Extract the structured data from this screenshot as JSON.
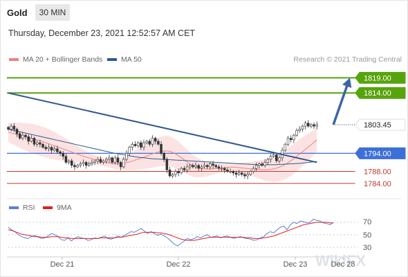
{
  "header": {
    "instrument": "Gold",
    "timeframe": "30 MIN",
    "datetime": "Thursday, December 23, 2021 12:52:57 AM CET"
  },
  "legend": {
    "ma20": {
      "label": "MA 20 + Bollinger Bands",
      "color": "#f08080"
    },
    "ma50": {
      "label": "MA 50",
      "color": "#2d5b8c"
    },
    "copyright": "Research © 2021 Trading Central"
  },
  "rsi_legend": {
    "rsi": {
      "label": "RSI",
      "color": "#5b7fd6"
    },
    "ma9": {
      "label": "9MA",
      "color": "#e0201b"
    }
  },
  "watermark": "WikiFX",
  "chart_data": [
    {
      "type": "candlestick",
      "title": "Gold",
      "timeframe": "30 MIN",
      "x_ticks": [
        "Dec 21",
        "Dec 22",
        "Dec 23",
        "Dec 28"
      ],
      "ylim": [
        1781,
        1823
      ],
      "price_levels": [
        {
          "label": "1819.00",
          "value": 1819.0,
          "color": "#57a30c",
          "role": "target"
        },
        {
          "label": "1814.00",
          "value": 1814.0,
          "color": "#57a30c",
          "role": "target"
        },
        {
          "label": "1803.45",
          "value": 1803.45,
          "color": "#222222",
          "role": "last-price"
        },
        {
          "label": "1794.00",
          "value": 1794.0,
          "color": "#3d6fd9",
          "role": "pivot"
        },
        {
          "label": "1788.00",
          "value": 1788.0,
          "color": "#c0392b",
          "role": "support"
        },
        {
          "label": "1784.00",
          "value": 1784.0,
          "color": "#c0392b",
          "role": "support"
        }
      ],
      "trendline": {
        "from": {
          "t": 0,
          "price": 1814.0
        },
        "to": {
          "t": 112,
          "price": 1791.0
        }
      },
      "forecast_arrow": {
        "from": {
          "t": 118,
          "price": 1803.5
        },
        "to": {
          "t": 124,
          "price": 1819.0
        }
      },
      "close_series": [
        1802.0,
        1803.0,
        1802.0,
        1800.5,
        1799.0,
        1800.0,
        1799.5,
        1798.0,
        1799.0,
        1797.0,
        1797.5,
        1797.0,
        1796.0,
        1795.5,
        1796.0,
        1795.0,
        1795.5,
        1794.5,
        1794.0,
        1793.0,
        1791.0,
        1791.5,
        1790.0,
        1789.5,
        1790.0,
        1790.5,
        1791.0,
        1790.0,
        1790.5,
        1791.0,
        1791.5,
        1792.0,
        1791.0,
        1791.5,
        1792.0,
        1792.5,
        1791.0,
        1792.5,
        1791.0,
        1789.5,
        1792.0,
        1794.0,
        1796.0,
        1797.0,
        1796.5,
        1797.5,
        1796.0,
        1797.5,
        1798.0,
        1797.0,
        1799.0,
        1798.0,
        1797.0,
        1794.0,
        1792.0,
        1788.5,
        1786.5,
        1787.0,
        1788.0,
        1787.5,
        1789.0,
        1788.5,
        1789.5,
        1790.0,
        1789.5,
        1790.0,
        1789.0,
        1789.5,
        1790.0,
        1789.5,
        1790.5,
        1790.0,
        1789.5,
        1789.0,
        1789.0,
        1788.5,
        1788.0,
        1788.0,
        1787.5,
        1787.0,
        1787.5,
        1787.0,
        1786.5,
        1787.0,
        1788.0,
        1789.0,
        1790.0,
        1790.5,
        1790.0,
        1791.0,
        1792.0,
        1793.0,
        1793.5,
        1791.5,
        1792.5,
        1795.0,
        1797.0,
        1799.0,
        1798.5,
        1800.0,
        1801.5,
        1802.0,
        1803.0,
        1804.0,
        1803.0,
        1803.5,
        1803.0,
        1803.5
      ],
      "ma20_series": [
        1801.0,
        1800.7,
        1800.4,
        1800.1,
        1799.8,
        1799.5,
        1799.2,
        1798.9,
        1798.6,
        1798.3,
        1798.0,
        1797.6,
        1797.2,
        1796.8,
        1796.4,
        1796.0,
        1795.6,
        1795.2,
        1794.8,
        1794.4,
        1794.0,
        1793.6,
        1793.2,
        1792.8,
        1792.5,
        1792.2,
        1791.9,
        1791.6,
        1791.3,
        1791.0,
        1790.8,
        1790.6,
        1790.5,
        1790.5,
        1790.6,
        1790.8,
        1791.1,
        1791.4,
        1791.8,
        1792.2,
        1792.6,
        1793.0,
        1793.4,
        1793.8,
        1794.2,
        1794.5,
        1794.7,
        1794.8,
        1794.7,
        1794.3,
        1793.7,
        1793.0,
        1792.2,
        1791.4,
        1790.6,
        1789.9,
        1789.4,
        1789.1,
        1788.9,
        1788.8,
        1788.8,
        1788.9,
        1789.0,
        1789.1,
        1789.2,
        1789.3,
        1789.4,
        1789.4,
        1789.3,
        1789.2,
        1789.1,
        1789.0,
        1788.9,
        1788.8,
        1788.7,
        1788.6,
        1788.5,
        1788.5,
        1788.6,
        1788.8,
        1789.1,
        1789.5,
        1790.0,
        1790.6,
        1791.3,
        1792.1,
        1793.0,
        1793.9,
        1794.8,
        1795.7,
        1796.6,
        1797.5,
        1798.4
      ],
      "ma50_series": [
        1802.0,
        1801.6,
        1801.2,
        1800.8,
        1800.4,
        1800.0,
        1799.6,
        1799.2,
        1798.8,
        1798.4,
        1798.0,
        1797.6,
        1797.2,
        1796.8,
        1796.4,
        1796.0,
        1795.6,
        1795.2,
        1794.8,
        1794.4,
        1794.0,
        1793.7,
        1793.4,
        1793.1,
        1792.8,
        1792.6,
        1792.4,
        1792.2,
        1792.1,
        1792.0,
        1791.9,
        1791.8,
        1791.7,
        1791.6,
        1791.5,
        1791.4,
        1791.3,
        1791.2,
        1791.1,
        1791.0,
        1790.9,
        1790.8,
        1790.7,
        1790.6,
        1790.5,
        1790.4,
        1790.3,
        1790.2,
        1790.2,
        1790.2,
        1790.2,
        1790.3,
        1790.4,
        1790.5,
        1790.6,
        1790.7,
        1790.9,
        1791.1,
        1791.3
      ]
    },
    {
      "type": "line",
      "title": "RSI",
      "y_ticks": [
        30,
        50,
        70
      ],
      "ylim": [
        20,
        80
      ],
      "series": [
        {
          "name": "RSI",
          "values": [
            62,
            58,
            55,
            50,
            47,
            45,
            44,
            47,
            49,
            46,
            44,
            45,
            48,
            52,
            50,
            47,
            42,
            41,
            45,
            40,
            44,
            47,
            45,
            44,
            41,
            42,
            45,
            44,
            46,
            48,
            44,
            43,
            45,
            48,
            46,
            49,
            52,
            55,
            54,
            57,
            60,
            56,
            52,
            55,
            52,
            49,
            51,
            48,
            45,
            40,
            35,
            32,
            36,
            40,
            44,
            42,
            44,
            47,
            45,
            48,
            50,
            46,
            47,
            48,
            45,
            47,
            48,
            46,
            44,
            46,
            47,
            45,
            44,
            43,
            41,
            42,
            45,
            47,
            52,
            55,
            53,
            58,
            62,
            64,
            58,
            66,
            70,
            68,
            72,
            71,
            69,
            70,
            75,
            73,
            72,
            69,
            68,
            66,
            70
          ]
        },
        {
          "name": "9MA",
          "values": [
            58,
            57,
            55,
            53,
            51,
            50,
            49,
            48,
            47,
            47,
            46,
            46,
            46,
            47,
            47,
            47,
            46,
            45,
            45,
            44,
            44,
            44,
            44,
            44,
            44,
            44,
            44,
            44,
            45,
            45,
            45,
            45,
            45,
            46,
            46,
            47,
            48,
            49,
            50,
            51,
            53,
            54,
            54,
            54,
            54,
            53,
            53,
            52,
            51,
            49,
            47,
            45,
            43,
            42,
            41,
            41,
            41,
            42,
            43,
            44,
            45,
            46,
            46,
            46,
            46,
            46,
            46,
            46,
            46,
            46,
            46,
            46,
            45,
            45,
            44,
            44,
            44,
            45,
            46,
            47,
            48,
            50,
            52,
            54,
            56,
            58,
            60,
            62,
            64,
            66,
            67,
            68,
            69,
            70,
            70,
            70,
            70,
            69,
            69
          ]
        }
      ]
    }
  ]
}
